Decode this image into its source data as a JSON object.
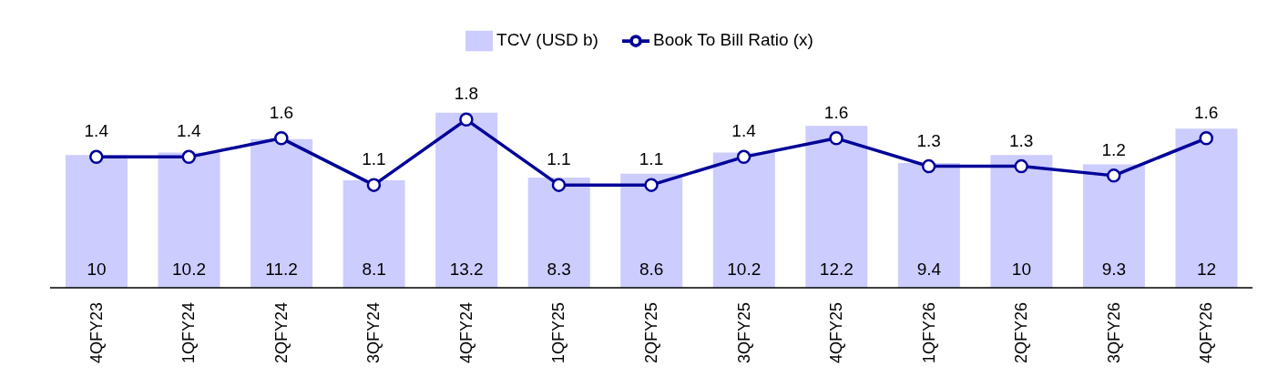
{
  "chart_data": {
    "type": "bar",
    "categories": [
      "4QFY23",
      "1QFY24",
      "2QFY24",
      "3QFY24",
      "4QFY24",
      "1QFY25",
      "2QFY25",
      "3QFY25",
      "4QFY25",
      "1QFY26",
      "2QFY26",
      "3QFY26",
      "4QFY26"
    ],
    "series": [
      {
        "name": "TCV (USD b)",
        "color": "#ccccff",
        "values": [
          10,
          10.2,
          11.2,
          8.1,
          13.2,
          8.3,
          8.6,
          10.2,
          12.2,
          9.4,
          10,
          9.3,
          12
        ]
      },
      {
        "name": "Book To Bill Ratio (x)",
        "type": "line",
        "axis": "y2",
        "color": "#000099",
        "values": [
          1.4,
          1.4,
          1.6,
          1.1,
          1.8,
          1.1,
          1.1,
          1.4,
          1.6,
          1.3,
          1.3,
          1.2,
          1.6
        ]
      }
    ],
    "data_labels": true,
    "tick_labels": "x",
    "grid": false,
    "legend": "top",
    "marker": "circle",
    "line_style": "solid"
  }
}
